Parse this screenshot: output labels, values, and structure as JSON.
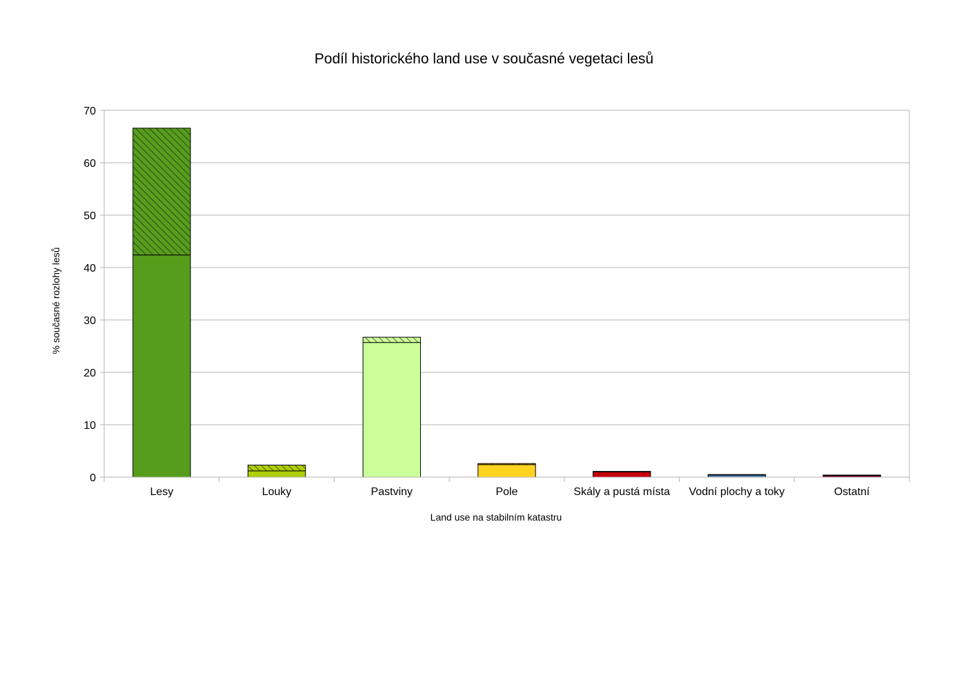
{
  "chart_data": {
    "type": "bar",
    "stacked": true,
    "title": "Podíl historického land use v současné vegetaci lesů",
    "xlabel": "Land use na stabilním katastru",
    "ylabel": "% současné rozlohy lesů",
    "ylim": [
      0,
      70
    ],
    "yticks": [
      "0",
      "10",
      "20",
      "30",
      "40",
      "50",
      "60",
      "70"
    ],
    "grid": true,
    "legend": "none",
    "categories": [
      "Lesy",
      "Louky",
      "Pastviny",
      "Pole",
      "Skály a pustá místa",
      "Vodní plochy a toky",
      "Ostatní"
    ],
    "colors": [
      "#579d1c",
      "#aecf00",
      "#ccff99",
      "#ffd320",
      "#c5000b",
      "#4a7fb0",
      "#7e0021"
    ],
    "series": [
      {
        "values": [
          42.4,
          1.2,
          25.7,
          2.4,
          1.0,
          0.4,
          0.3
        ],
        "pattern": "solid"
      },
      {
        "values": [
          24.2,
          1.1,
          1.0,
          0.2,
          0.1,
          0.1,
          0.1
        ],
        "pattern": "hatched"
      }
    ]
  }
}
